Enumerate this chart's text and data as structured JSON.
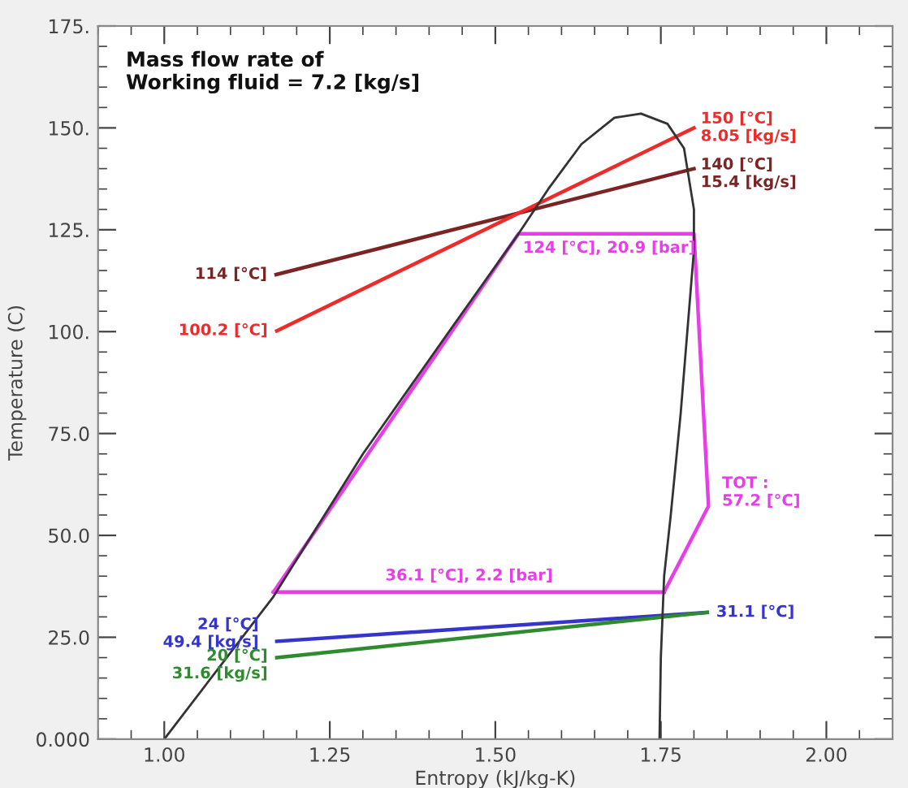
{
  "chart_data": {
    "type": "line",
    "xlabel": "Entropy (kJ/kg-K)",
    "ylabel": "Temperature (C)",
    "xlim": [
      0.9,
      2.1
    ],
    "ylim": [
      0,
      175
    ],
    "xticks": [
      {
        "value": 1.0,
        "label": "1.00"
      },
      {
        "value": 1.25,
        "label": "1.25"
      },
      {
        "value": 1.5,
        "label": "1.50"
      },
      {
        "value": 1.75,
        "label": "1.75"
      },
      {
        "value": 2.0,
        "label": "2.00"
      }
    ],
    "yticks": [
      {
        "value": 0,
        "label": "0.000"
      },
      {
        "value": 25,
        "label": "25.0"
      },
      {
        "value": 50,
        "label": "50.0"
      },
      {
        "value": 75,
        "label": "75.0"
      },
      {
        "value": 100,
        "label": "100."
      },
      {
        "value": 125,
        "label": "125."
      },
      {
        "value": 150,
        "label": "150."
      },
      {
        "value": 175,
        "label": "175."
      }
    ],
    "grid": false,
    "marker": "none",
    "line_style": "solid",
    "series": [
      {
        "color": "#7b2424",
        "x": [
          1.169,
          1.8
        ],
        "values": [
          114,
          140
        ]
      },
      {
        "color": "#ee2b2b",
        "x": [
          1.17,
          1.8
        ],
        "values": [
          100.2,
          150
        ]
      },
      {
        "color": "#e83ee8",
        "x": [
          1.165,
          1.535,
          1.8,
          1.822,
          1.755
        ],
        "values": [
          36.1,
          124,
          124,
          57.2,
          36.1
        ]
      },
      {
        "color": "#e83ee8",
        "x": [
          1.165,
          1.755
        ],
        "values": [
          36.1,
          36.1
        ]
      },
      {
        "color": "#3535cc",
        "x": [
          1.17,
          1.82
        ],
        "values": [
          24,
          31.1
        ]
      },
      {
        "color": "#2e8b2e",
        "x": [
          1.17,
          1.82
        ],
        "values": [
          20,
          31.1
        ]
      },
      {
        "color": "#333333",
        "x": [
          1.0,
          1.165,
          1.3,
          1.43,
          1.535,
          1.58,
          1.63,
          1.68,
          1.72,
          1.76,
          1.785,
          1.8,
          1.8,
          1.79,
          1.78,
          1.765,
          1.755,
          1.75,
          1.748
        ],
        "values": [
          0,
          35,
          70,
          100,
          124,
          135,
          146,
          152.5,
          153.5,
          151,
          145,
          130,
          120,
          100,
          80,
          55,
          40,
          20,
          0
        ]
      }
    ],
    "annotations": [
      "Mass flow rate of\nWorking fluid = 7.2 [kg/s]",
      {
        "text": "114 [°C]",
        "x": 1.169,
        "y": 114
      },
      {
        "text": "100.2 [°C]",
        "x": 1.17,
        "y": 100.2
      },
      {
        "text": "150 [°C]\n8.05 [kg/s]",
        "x": 1.8,
        "y": 150
      },
      {
        "text": "140 [°C]\n15.4 [kg/s]",
        "x": 1.8,
        "y": 140
      },
      {
        "text": "124 [°C], 20.9 [bar]",
        "x": 1.535,
        "y": 124
      },
      "36.1 [°C], 2.2 [bar]",
      {
        "text": "TOT :\n57.2 [°C]",
        "x": 1.822,
        "y": 57.2
      },
      {
        "text": "24 [°C]\n49.4 [kg/s]",
        "x": 1.17,
        "y": 24
      },
      {
        "text": "20 [°C]\n31.6 [kg/s]",
        "x": 1.17,
        "y": 20
      },
      {
        "text": "31.1 [°C]",
        "x": 1.82,
        "y": 31.1
      }
    ]
  }
}
